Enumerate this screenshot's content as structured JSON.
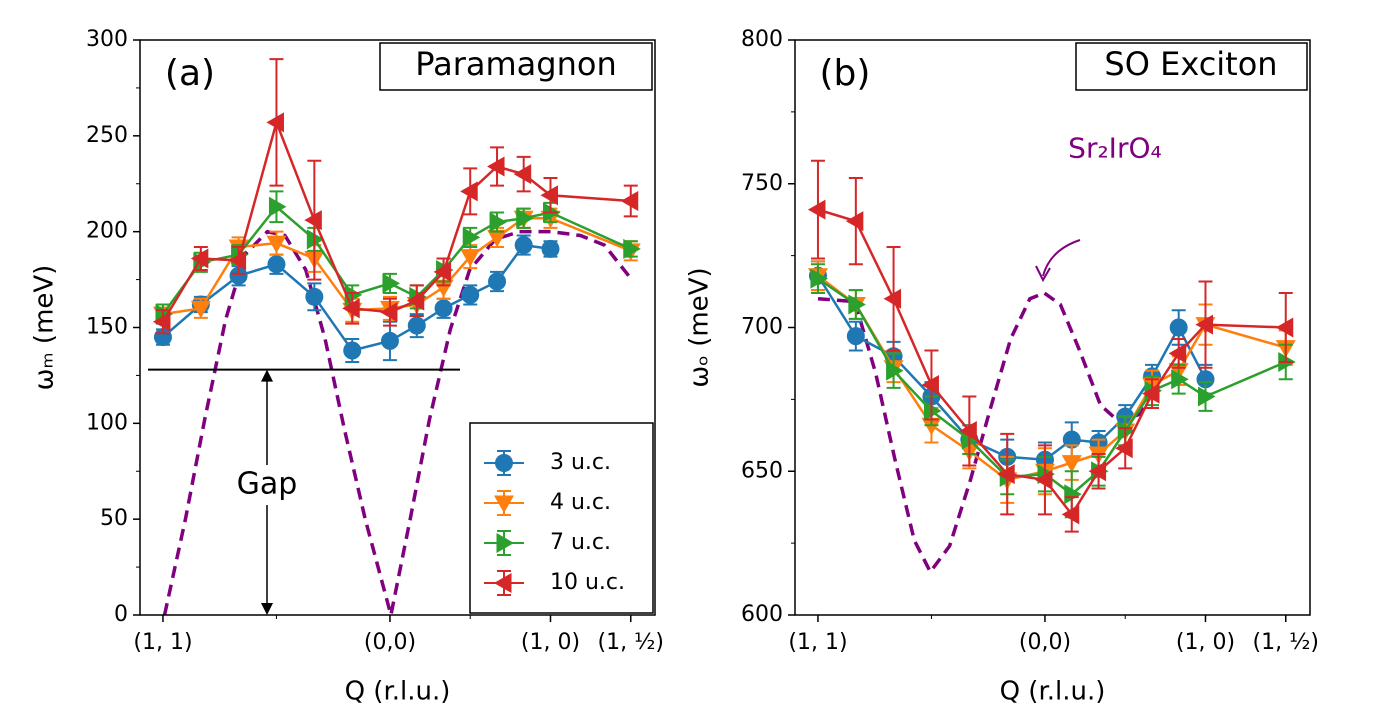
{
  "chart_data": [
    {
      "type": "line",
      "title": "Paramagnon",
      "panel_label": "(a)",
      "x_label": "Q (r.l.u.)",
      "y_label": "ωₘ (meV)",
      "xlim": [
        -0.143,
        3.065
      ],
      "xticks": [
        {
          "value": 0,
          "label": "(1, 1)"
        },
        {
          "value": 1.414,
          "label": "(0,0)"
        },
        {
          "value": 2.414,
          "label": "(1, 0)"
        },
        {
          "value": 2.914,
          "label": "(1, ½)"
        }
      ],
      "xminor": [
        0.707,
        1.914
      ],
      "ylim": [
        0,
        300
      ],
      "yticks": [
        0,
        50,
        100,
        150,
        200,
        250,
        300
      ],
      "yminor": [
        25,
        75,
        125,
        175,
        225,
        275
      ],
      "legend": "lower right",
      "gap_label": "Gap",
      "gap_level": 128,
      "series": [
        {
          "name": "3 u.c.",
          "color": "#1f77b4",
          "marker": "circle",
          "x": [
            0,
            0.236,
            0.471,
            0.707,
            0.943,
            1.179,
            1.414,
            1.581,
            1.748,
            1.914,
            2.081,
            2.247,
            2.414
          ],
          "values": [
            145,
            162,
            177,
            183,
            166,
            138,
            143,
            151,
            160,
            167,
            174,
            193,
            191
          ],
          "errors": [
            4,
            4,
            5,
            5,
            7,
            6,
            10,
            6,
            5,
            5,
            5,
            5,
            4
          ]
        },
        {
          "name": "4 u.c.",
          "color": "#ff7f0e",
          "marker": "triangle-down",
          "x": [
            0,
            0.236,
            0.471,
            0.707,
            0.943,
            1.179,
            1.414,
            1.581,
            1.748,
            1.914,
            2.081,
            2.247,
            2.414,
            2.914
          ],
          "values": [
            157,
            160,
            192,
            194,
            186,
            159,
            160,
            162,
            171,
            187,
            197,
            207,
            207,
            190
          ],
          "errors": [
            5,
            5,
            5,
            6,
            7,
            6,
            6,
            6,
            6,
            6,
            5,
            5,
            5,
            5
          ]
        },
        {
          "name": "7 u.c.",
          "color": "#2ca02c",
          "marker": "triangle-right",
          "x": [
            0,
            0.236,
            0.471,
            0.707,
            0.943,
            1.179,
            1.414,
            1.581,
            1.748,
            1.914,
            2.081,
            2.247,
            2.414,
            2.914
          ],
          "values": [
            157,
            184,
            188,
            213,
            196,
            167,
            173,
            166,
            180,
            197,
            205,
            207,
            210,
            191
          ],
          "errors": [
            5,
            5,
            5,
            8,
            6,
            5,
            5,
            6,
            6,
            5,
            5,
            5,
            5,
            4
          ]
        },
        {
          "name": "10 u.c.",
          "color": "#d62728",
          "marker": "triangle-left",
          "x": [
            0,
            0.236,
            0.471,
            0.707,
            0.943,
            1.179,
            1.414,
            1.581,
            1.748,
            1.914,
            2.081,
            2.247,
            2.414,
            2.914
          ],
          "values": [
            153,
            186,
            185,
            257,
            206,
            160,
            158,
            164,
            179,
            221,
            234,
            230,
            219,
            216
          ],
          "errors": [
            6,
            6,
            7,
            33,
            31,
            8,
            7,
            8,
            7,
            12,
            10,
            9,
            9,
            8
          ]
        }
      ],
      "reference": {
        "color": "#800080",
        "x": [
          0.01,
          0.14,
          0.26,
          0.39,
          0.51,
          0.65,
          0.76,
          0.89,
          1.01,
          1.13,
          1.26,
          1.42,
          1.54,
          1.66,
          1.79,
          1.91,
          2.07,
          2.22,
          2.42,
          2.6,
          2.75,
          2.92
        ],
        "values": [
          0,
          50,
          102,
          154,
          188,
          200,
          198,
          180,
          144,
          97,
          50,
          0,
          50,
          102,
          149,
          180,
          196,
          200,
          200,
          198,
          193,
          175
        ]
      }
    },
    {
      "type": "line",
      "title": "SO Exciton",
      "panel_label": "(b)",
      "x_label": "Q (r.l.u.)",
      "y_label": "ωₒ (meV)",
      "xlim": [
        -0.143,
        3.065
      ],
      "xticks": [
        {
          "value": 0,
          "label": "(1, 1)"
        },
        {
          "value": 1.414,
          "label": "(0,0)"
        },
        {
          "value": 2.414,
          "label": "(1, 0)"
        },
        {
          "value": 2.914,
          "label": "(1, ½)"
        }
      ],
      "xminor": [
        0.707,
        1.914
      ],
      "ylim": [
        600,
        800
      ],
      "yticks": [
        600,
        650,
        700,
        750,
        800
      ],
      "yminor": [
        625,
        675,
        725,
        775
      ],
      "series": [
        {
          "color": "#1f77b4",
          "marker": "circle",
          "x": [
            0,
            0.236,
            0.471,
            0.707,
            0.943,
            1.179,
            1.414,
            1.581,
            1.748,
            1.914,
            2.081,
            2.247,
            2.414
          ],
          "values": [
            718,
            697,
            690,
            676,
            661,
            655,
            654,
            661,
            660,
            669,
            683,
            700,
            682
          ],
          "errors": [
            5,
            5,
            5,
            5,
            5,
            6,
            6,
            6,
            4,
            4,
            4,
            6,
            5
          ]
        },
        {
          "color": "#ff7f0e",
          "marker": "triangle-down",
          "x": [
            0,
            0.236,
            0.471,
            0.707,
            0.943,
            1.179,
            1.414,
            1.581,
            1.748,
            1.914,
            2.081,
            2.247,
            2.414,
            2.914
          ],
          "values": [
            718,
            708,
            686,
            666,
            657,
            647,
            650,
            653,
            656,
            664,
            680,
            685,
            701,
            693
          ],
          "errors": [
            5,
            5,
            5,
            6,
            6,
            8,
            8,
            6,
            5,
            5,
            5,
            5,
            7,
            6
          ]
        },
        {
          "color": "#2ca02c",
          "marker": "triangle-right",
          "x": [
            0,
            0.236,
            0.471,
            0.707,
            0.943,
            1.179,
            1.414,
            1.581,
            1.748,
            1.914,
            2.081,
            2.247,
            2.414,
            2.914
          ],
          "values": [
            717,
            708,
            685,
            671,
            661,
            648,
            649,
            642,
            650,
            664,
            678,
            682,
            676,
            688
          ],
          "errors": [
            5,
            5,
            6,
            5,
            5,
            6,
            6,
            8,
            5,
            5,
            5,
            5,
            5,
            6
          ]
        },
        {
          "color": "#d62728",
          "marker": "triangle-left",
          "x": [
            0,
            0.236,
            0.471,
            0.707,
            0.943,
            1.179,
            1.414,
            1.581,
            1.748,
            1.914,
            2.081,
            2.247,
            2.414,
            2.914
          ],
          "values": [
            741,
            737,
            710,
            680,
            664,
            649,
            647,
            635,
            650,
            658,
            677,
            691,
            701,
            700
          ],
          "errors": [
            17,
            15,
            18,
            12,
            12,
            14,
            12,
            6,
            6,
            7,
            5,
            5,
            15,
            12
          ]
        }
      ],
      "reference": {
        "label": "Sr₂IrO₄",
        "color": "#800080",
        "x": [
          0,
          0.23,
          0.36,
          0.48,
          0.6,
          0.7,
          0.82,
          0.95,
          1.07,
          1.2,
          1.32,
          1.41,
          1.51,
          1.63,
          1.76,
          1.88,
          2.01,
          2.13
        ],
        "values": [
          710,
          709,
          684,
          654,
          626,
          615,
          624,
          647,
          671,
          696,
          710,
          712,
          708,
          692,
          673,
          667,
          670,
          682
        ]
      }
    }
  ]
}
